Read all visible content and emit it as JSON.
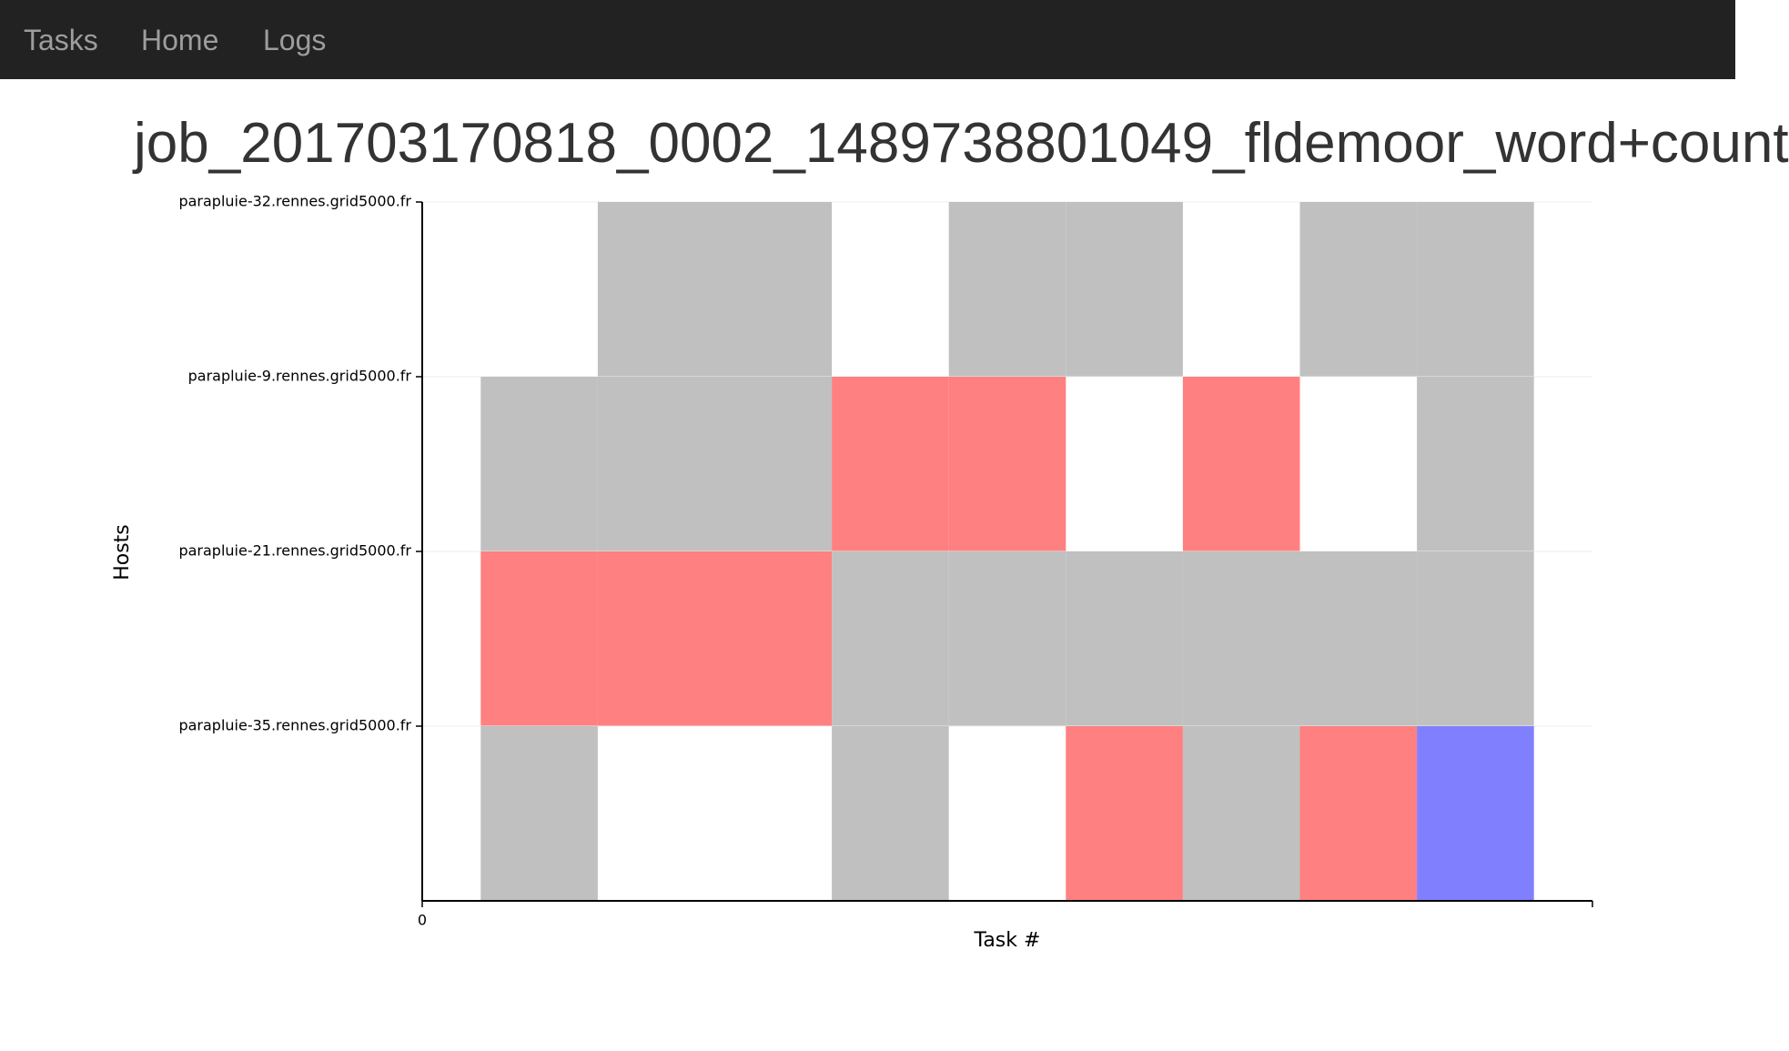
{
  "nav": {
    "items": [
      "Tasks",
      "Home",
      "Logs"
    ]
  },
  "chart_data": {
    "type": "timeline",
    "title": "job_201703170818_0002_1489738801049_fldemoor_word+count",
    "xlabel": "Task #",
    "ylabel": "Hosts",
    "xlim": [
      0,
      10
    ],
    "xticks": [
      0
    ],
    "series": [
      {
        "name": "parapluie-32.rennes.grid5000.fr",
        "x": [
          2,
          3,
          5,
          6,
          8,
          9
        ],
        "colors": [
          "#c0c0c0",
          "#c0c0c0",
          "#c0c0c0",
          "#c0c0c0",
          "#c0c0c0",
          "#c0c0c0"
        ]
      },
      {
        "name": "parapluie-9.rennes.grid5000.fr",
        "x": [
          1,
          2,
          3,
          4,
          5,
          7,
          9
        ],
        "colors": [
          "#c0c0c0",
          "#c0c0c0",
          "#c0c0c0",
          "#ff8080",
          "#ff8080",
          "#ff8080",
          "#c0c0c0"
        ]
      },
      {
        "name": "parapluie-21.rennes.grid5000.fr",
        "x": [
          1,
          2,
          3,
          4,
          5,
          6,
          7,
          8,
          9
        ],
        "colors": [
          "#ff8080",
          "#ff8080",
          "#ff8080",
          "#c0c0c0",
          "#c0c0c0",
          "#c0c0c0",
          "#c0c0c0",
          "#c0c0c0",
          "#c0c0c0"
        ]
      },
      {
        "name": "parapluie-35.rennes.grid5000.fr",
        "x": [
          1,
          4,
          6,
          7,
          8,
          9
        ],
        "colors": [
          "#c0c0c0",
          "#c0c0c0",
          "#ff8080",
          "#c0c0c0",
          "#ff8080",
          "#8080ff"
        ]
      }
    ],
    "grid": true
  }
}
